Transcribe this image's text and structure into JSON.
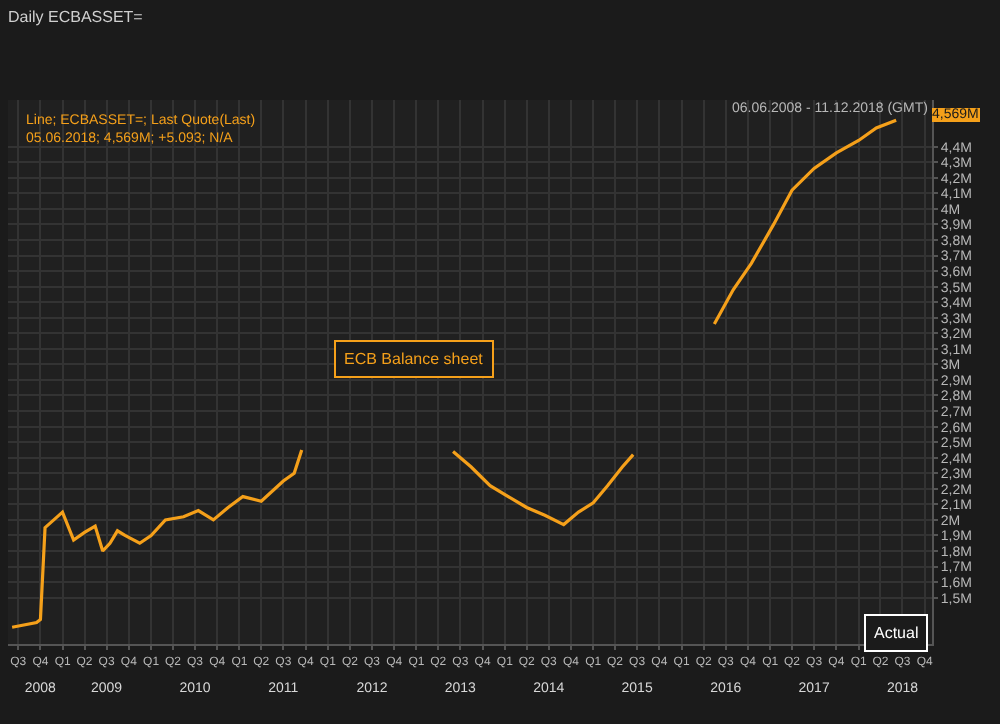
{
  "chart_data": {
    "type": "line",
    "title": "Daily ECBASSET=",
    "annotations": [
      "Line; ECBASSET=; Last Quote(Last)",
      "05.06.2018; 4,569M; +5.093; N/A",
      "06.06.2008 - 11.12.2018 (GMT)",
      "ECB Balance sheet",
      "4,569M",
      "Actual"
    ],
    "series": [
      {
        "color": "#f5a01a",
        "x": [
          "2008-06-06",
          "2008-09-15",
          "2008-10-01",
          "2008-10-20",
          "2008-12-31",
          "2009-02-15",
          "2009-04-01",
          "2009-05-15",
          "2009-06-15",
          "2009-07-15",
          "2009-08-15",
          "2009-09-15",
          "2009-11-15",
          "2010-01-01",
          "2010-03-01",
          "2010-05-15",
          "2010-07-15",
          "2010-09-15",
          "2010-11-15",
          "2011-01-15",
          "2011-04-01",
          "2011-07-01",
          "2011-08-15",
          "2011-09-15",
          "2011-10-15",
          "2013-06-01",
          "2013-08-15",
          "2013-11-01",
          "2014-01-15",
          "2014-04-01",
          "2014-06-15",
          "2014-09-01",
          "2014-11-01",
          "2015-01-01",
          "2015-03-01",
          "2015-05-01",
          "2015-06-15",
          "2015-08-01",
          "2016-05-15",
          "2016-08-01",
          "2016-10-15",
          "2017-01-15",
          "2017-04-01",
          "2017-07-01",
          "2017-10-01",
          "2018-01-01",
          "2018-03-15",
          "2018-06-05"
        ],
        "values": [
          1.31,
          1.34,
          1.36,
          1.95,
          2.05,
          1.87,
          1.92,
          1.96,
          1.8,
          1.85,
          1.93,
          1.9,
          1.85,
          1.9,
          2.0,
          2.02,
          2.06,
          2.0,
          2.08,
          2.15,
          2.12,
          2.25,
          2.3,
          2.45,
          null,
          2.44,
          2.34,
          2.22,
          2.15,
          2.08,
          2.03,
          1.97,
          2.05,
          2.11,
          2.22,
          2.34,
          2.42,
          null,
          3.26,
          3.48,
          3.65,
          3.9,
          4.12,
          4.26,
          4.36,
          4.44,
          4.52,
          4.57
        ]
      }
    ],
    "xlim": [
      "2008-05-20",
      "2018-10-31"
    ],
    "xticks": [
      {
        "value": "2008-07-01",
        "label": "Q3"
      },
      {
        "value": "2008-10-01",
        "label": "Q4"
      },
      {
        "value": "2009-01-01",
        "label": "Q1"
      },
      {
        "value": "2009-04-01",
        "label": "Q2"
      },
      {
        "value": "2009-07-01",
        "label": "Q3"
      },
      {
        "value": "2009-10-01",
        "label": "Q4"
      },
      {
        "value": "2010-01-01",
        "label": "Q1"
      },
      {
        "value": "2010-04-01",
        "label": "Q2"
      },
      {
        "value": "2010-07-01",
        "label": "Q3"
      },
      {
        "value": "2010-10-01",
        "label": "Q4"
      },
      {
        "value": "2011-01-01",
        "label": "Q1"
      },
      {
        "value": "2011-04-01",
        "label": "Q2"
      },
      {
        "value": "2011-07-01",
        "label": "Q3"
      },
      {
        "value": "2011-10-01",
        "label": "Q4"
      },
      {
        "value": "2012-01-01",
        "label": "Q1"
      },
      {
        "value": "2012-04-01",
        "label": "Q2"
      },
      {
        "value": "2012-07-01",
        "label": "Q3"
      },
      {
        "value": "2012-10-01",
        "label": "Q4"
      },
      {
        "value": "2013-01-01",
        "label": "Q1"
      },
      {
        "value": "2013-04-01",
        "label": "Q2"
      },
      {
        "value": "2013-07-01",
        "label": "Q3"
      },
      {
        "value": "2013-10-01",
        "label": "Q4"
      },
      {
        "value": "2014-01-01",
        "label": "Q1"
      },
      {
        "value": "2014-04-01",
        "label": "Q2"
      },
      {
        "value": "2014-07-01",
        "label": "Q3"
      },
      {
        "value": "2014-10-01",
        "label": "Q4"
      },
      {
        "value": "2015-01-01",
        "label": "Q1"
      },
      {
        "value": "2015-04-01",
        "label": "Q2"
      },
      {
        "value": "2015-07-01",
        "label": "Q3"
      },
      {
        "value": "2015-10-01",
        "label": "Q4"
      },
      {
        "value": "2016-01-01",
        "label": "Q1"
      },
      {
        "value": "2016-04-01",
        "label": "Q2"
      },
      {
        "value": "2016-07-01",
        "label": "Q3"
      },
      {
        "value": "2016-10-01",
        "label": "Q4"
      },
      {
        "value": "2017-01-01",
        "label": "Q1"
      },
      {
        "value": "2017-04-01",
        "label": "Q2"
      },
      {
        "value": "2017-07-01",
        "label": "Q3"
      },
      {
        "value": "2017-10-01",
        "label": "Q4"
      },
      {
        "value": "2018-01-01",
        "label": "Q1"
      },
      {
        "value": "2018-04-01",
        "label": "Q2"
      },
      {
        "value": "2018-07-01",
        "label": "Q3"
      },
      {
        "value": "2018-10-01",
        "label": "Q4"
      }
    ],
    "x2lim": [
      "2008-05-20",
      "2018-10-31"
    ],
    "x2ticks": [
      {
        "value": "2008-09-30",
        "label": "2008"
      },
      {
        "value": "2009-07-01",
        "label": "2009"
      },
      {
        "value": "2010-07-01",
        "label": "2010"
      },
      {
        "value": "2011-07-01",
        "label": "2011"
      },
      {
        "value": "2012-07-01",
        "label": "2012"
      },
      {
        "value": "2013-07-01",
        "label": "2013"
      },
      {
        "value": "2014-07-01",
        "label": "2014"
      },
      {
        "value": "2015-07-01",
        "label": "2015"
      },
      {
        "value": "2016-07-01",
        "label": "2016"
      },
      {
        "value": "2017-07-01",
        "label": "2017"
      },
      {
        "value": "2018-07-01",
        "label": "2018"
      }
    ],
    "ylim": [
      1.2,
      4.7
    ],
    "yticks": [
      {
        "value": 1.5,
        "label": "1,5M"
      },
      {
        "value": 1.6,
        "label": "1,6M"
      },
      {
        "value": 1.7,
        "label": "1,7M"
      },
      {
        "value": 1.8,
        "label": "1,8M"
      },
      {
        "value": 1.9,
        "label": "1,9M"
      },
      {
        "value": 2,
        "label": "2M"
      },
      {
        "value": 2.1,
        "label": "2,1M"
      },
      {
        "value": 2.2,
        "label": "2,2M"
      },
      {
        "value": 2.3,
        "label": "2,3M"
      },
      {
        "value": 2.4,
        "label": "2,4M"
      },
      {
        "value": 2.5,
        "label": "2,5M"
      },
      {
        "value": 2.6,
        "label": "2,6M"
      },
      {
        "value": 2.7,
        "label": "2,7M"
      },
      {
        "value": 2.8,
        "label": "2,8M"
      },
      {
        "value": 2.9,
        "label": "2,9M"
      },
      {
        "value": 3,
        "label": "3M"
      },
      {
        "value": 3.1,
        "label": "3,1M"
      },
      {
        "value": 3.2,
        "label": "3,2M"
      },
      {
        "value": 3.3,
        "label": "3,3M"
      },
      {
        "value": 3.4,
        "label": "3,4M"
      },
      {
        "value": 3.5,
        "label": "3,5M"
      },
      {
        "value": 3.6,
        "label": "3,6M"
      },
      {
        "value": 3.7,
        "label": "3,7M"
      },
      {
        "value": 3.8,
        "label": "3,8M"
      },
      {
        "value": 3.9,
        "label": "3,9M"
      },
      {
        "value": 4,
        "label": "4M"
      },
      {
        "value": 4.1,
        "label": "4,1M"
      },
      {
        "value": 4.2,
        "label": "4,2M"
      },
      {
        "value": 4.3,
        "label": "4,3M"
      },
      {
        "value": 4.4,
        "label": "4,4M"
      }
    ],
    "grid": true,
    "line_style": "solid",
    "marker": "none"
  }
}
